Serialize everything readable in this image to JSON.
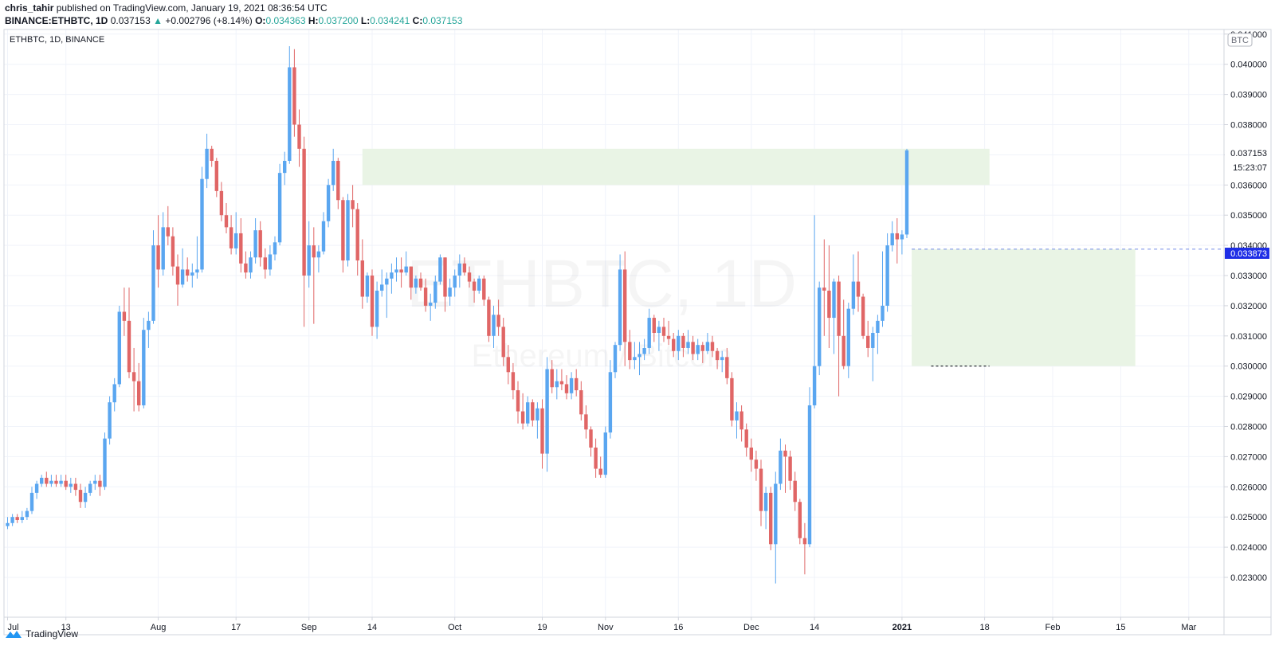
{
  "header": {
    "publisher_user": "chris_tahir",
    "publisher_text": "published on TradingView.com, January 19, 2021 08:36:54 UTC",
    "symbol_full": "BINANCE:ETHBTC, 1D",
    "last": "0.037153",
    "change": "+0.002796 (+8.14%)",
    "o_label": "O:",
    "o_val": "0.034363",
    "h_label": "H:",
    "h_val": "0.037200",
    "l_label": "L:",
    "l_val": "0.034241",
    "c_label": "C:",
    "c_val": "0.037153"
  },
  "legend": {
    "symbol": "ETHBTC, 1D, BINANCE"
  },
  "watermark": {
    "main": "ETHBTC, 1D",
    "sub": "Ethereum / Bitcoin"
  },
  "currency_badge": "BTC",
  "price_labels": {
    "last": "0.037153",
    "countdown": "15:23:07",
    "line": "0.033873"
  },
  "footer": {
    "brand": "TradingView"
  },
  "colors": {
    "up": "#5aa6f0",
    "down": "#e06666",
    "zone": "#e8f3e4",
    "line": "#3b5bdb"
  },
  "chart_data": {
    "type": "candlestick",
    "title": "ETHBTC, 1D, BINANCE",
    "ylim": [
      0.0226,
      0.0414
    ],
    "y_ticks": [
      "0.023000",
      "0.024000",
      "0.025000",
      "0.026000",
      "0.027000",
      "0.028000",
      "0.029000",
      "0.030000",
      "0.031000",
      "0.032000",
      "0.033000",
      "0.034000",
      "0.035000",
      "0.036000",
      "0.037000",
      "0.038000",
      "0.039000",
      "0.040000",
      "0.041000"
    ],
    "x_ticks": [
      {
        "day": 0,
        "label": "Jul"
      },
      {
        "day": 12,
        "label": "13"
      },
      {
        "day": 31,
        "label": "Aug"
      },
      {
        "day": 47,
        "label": "17"
      },
      {
        "day": 62,
        "label": "Sep"
      },
      {
        "day": 75,
        "label": "14"
      },
      {
        "day": 92,
        "label": "Oct"
      },
      {
        "day": 110,
        "label": "19"
      },
      {
        "day": 123,
        "label": "Nov"
      },
      {
        "day": 138,
        "label": "16"
      },
      {
        "day": 153,
        "label": "Dec"
      },
      {
        "day": 166,
        "label": "14"
      },
      {
        "day": 184,
        "label": "2021",
        "bold": true
      },
      {
        "day": 201,
        "label": "18"
      },
      {
        "day": 215,
        "label": "Feb"
      },
      {
        "day": 229,
        "label": "15"
      },
      {
        "day": 243,
        "label": "Mar"
      }
    ],
    "zones": [
      {
        "d0": 73,
        "d1": 202,
        "low": 0.036,
        "high": 0.0372
      },
      {
        "d0": 186,
        "d1": 232,
        "low": 0.03,
        "high": 0.03387
      }
    ],
    "hline": {
      "value": 0.033873,
      "from_day": 186
    },
    "black_dash": {
      "value": 0.03,
      "d0": 190,
      "d1": 202
    },
    "candles": [
      [
        0.0247,
        0.025,
        0.0246,
        0.0248
      ],
      [
        0.0248,
        0.0251,
        0.0247,
        0.025
      ],
      [
        0.025,
        0.0251,
        0.0248,
        0.0249
      ],
      [
        0.0249,
        0.0252,
        0.0248,
        0.025
      ],
      [
        0.025,
        0.0253,
        0.0249,
        0.0252
      ],
      [
        0.0252,
        0.026,
        0.0251,
        0.0258
      ],
      [
        0.0258,
        0.0262,
        0.0256,
        0.0261
      ],
      [
        0.0261,
        0.0264,
        0.026,
        0.0263
      ],
      [
        0.0263,
        0.0265,
        0.026,
        0.0261
      ],
      [
        0.0261,
        0.0264,
        0.026,
        0.0262
      ],
      [
        0.0262,
        0.0264,
        0.026,
        0.0261
      ],
      [
        0.0261,
        0.0264,
        0.026,
        0.0262
      ],
      [
        0.0262,
        0.0264,
        0.0259,
        0.026
      ],
      [
        0.026,
        0.0263,
        0.0258,
        0.0261
      ],
      [
        0.0261,
        0.0263,
        0.0257,
        0.0259
      ],
      [
        0.0259,
        0.0261,
        0.0253,
        0.0255
      ],
      [
        0.0255,
        0.026,
        0.0253,
        0.0258
      ],
      [
        0.0258,
        0.0262,
        0.0257,
        0.0261
      ],
      [
        0.0261,
        0.0264,
        0.0259,
        0.0262
      ],
      [
        0.0262,
        0.0264,
        0.0257,
        0.026
      ],
      [
        0.026,
        0.0278,
        0.0259,
        0.0276
      ],
      [
        0.0276,
        0.029,
        0.0274,
        0.0288
      ],
      [
        0.0288,
        0.0296,
        0.0285,
        0.0294
      ],
      [
        0.0294,
        0.032,
        0.0293,
        0.0318
      ],
      [
        0.0318,
        0.0326,
        0.031,
        0.0315
      ],
      [
        0.0315,
        0.0326,
        0.0296,
        0.0298
      ],
      [
        0.0298,
        0.0306,
        0.0285,
        0.0295
      ],
      [
        0.0295,
        0.0301,
        0.0285,
        0.0287
      ],
      [
        0.0287,
        0.0316,
        0.0286,
        0.0312
      ],
      [
        0.0312,
        0.0318,
        0.0306,
        0.0315
      ],
      [
        0.0315,
        0.0345,
        0.0314,
        0.034
      ],
      [
        0.034,
        0.035,
        0.0326,
        0.0332
      ],
      [
        0.0332,
        0.0351,
        0.033,
        0.0346
      ],
      [
        0.0346,
        0.0353,
        0.034,
        0.0343
      ],
      [
        0.0343,
        0.0346,
        0.033,
        0.0333
      ],
      [
        0.0333,
        0.0337,
        0.032,
        0.0327
      ],
      [
        0.0327,
        0.0339,
        0.0326,
        0.0332
      ],
      [
        0.0332,
        0.0336,
        0.0328,
        0.033
      ],
      [
        0.033,
        0.0334,
        0.0326,
        0.0331
      ],
      [
        0.0331,
        0.0343,
        0.0329,
        0.0332
      ],
      [
        0.0332,
        0.0366,
        0.0331,
        0.0362
      ],
      [
        0.0362,
        0.0377,
        0.0359,
        0.0372
      ],
      [
        0.0372,
        0.0373,
        0.0366,
        0.0368
      ],
      [
        0.0368,
        0.0369,
        0.0356,
        0.0358
      ],
      [
        0.0358,
        0.0361,
        0.0348,
        0.035
      ],
      [
        0.035,
        0.0354,
        0.0344,
        0.0346
      ],
      [
        0.0346,
        0.035,
        0.0337,
        0.0339
      ],
      [
        0.0339,
        0.0351,
        0.0337,
        0.0344
      ],
      [
        0.0344,
        0.0349,
        0.0331,
        0.0334
      ],
      [
        0.0334,
        0.0338,
        0.0329,
        0.0331
      ],
      [
        0.0331,
        0.0338,
        0.0329,
        0.0336
      ],
      [
        0.0336,
        0.0349,
        0.0334,
        0.0345
      ],
      [
        0.0345,
        0.0348,
        0.0333,
        0.0336
      ],
      [
        0.0336,
        0.0339,
        0.0329,
        0.0332
      ],
      [
        0.0332,
        0.034,
        0.033,
        0.0337
      ],
      [
        0.0337,
        0.0343,
        0.0335,
        0.0341
      ],
      [
        0.0341,
        0.0367,
        0.034,
        0.0364
      ],
      [
        0.0364,
        0.0371,
        0.036,
        0.0368
      ],
      [
        0.0368,
        0.0406,
        0.0367,
        0.0399
      ],
      [
        0.0399,
        0.0405,
        0.0376,
        0.038
      ],
      [
        0.038,
        0.0385,
        0.0366,
        0.0372
      ],
      [
        0.0372,
        0.0376,
        0.0313,
        0.033
      ],
      [
        0.033,
        0.0348,
        0.0326,
        0.034
      ],
      [
        0.034,
        0.0346,
        0.0314,
        0.0336
      ],
      [
        0.0336,
        0.034,
        0.0331,
        0.0338
      ],
      [
        0.0338,
        0.0351,
        0.0337,
        0.0348
      ],
      [
        0.0348,
        0.0362,
        0.0346,
        0.036
      ],
      [
        0.036,
        0.0372,
        0.0358,
        0.0368
      ],
      [
        0.0368,
        0.0369,
        0.0352,
        0.0355
      ],
      [
        0.0355,
        0.0356,
        0.0331,
        0.0335
      ],
      [
        0.0335,
        0.0357,
        0.0333,
        0.0355
      ],
      [
        0.0355,
        0.036,
        0.0346,
        0.0352
      ],
      [
        0.0352,
        0.0354,
        0.033,
        0.0335
      ],
      [
        0.0335,
        0.0342,
        0.0319,
        0.0323
      ],
      [
        0.0323,
        0.0331,
        0.0321,
        0.033
      ],
      [
        0.033,
        0.0332,
        0.031,
        0.0313
      ],
      [
        0.0313,
        0.0328,
        0.0309,
        0.0325
      ],
      [
        0.0325,
        0.0332,
        0.0323,
        0.0327
      ],
      [
        0.0327,
        0.0331,
        0.0316,
        0.0329
      ],
      [
        0.0329,
        0.0334,
        0.0324,
        0.0331
      ],
      [
        0.0331,
        0.0336,
        0.0328,
        0.0332
      ],
      [
        0.0332,
        0.0336,
        0.0326,
        0.0331
      ],
      [
        0.0331,
        0.0338,
        0.033,
        0.0333
      ],
      [
        0.0333,
        0.0333,
        0.0322,
        0.0326
      ],
      [
        0.0326,
        0.033,
        0.0324,
        0.0329
      ],
      [
        0.0329,
        0.0331,
        0.0325,
        0.0326
      ],
      [
        0.0326,
        0.0329,
        0.0318,
        0.032
      ],
      [
        0.032,
        0.0324,
        0.0315,
        0.0321
      ],
      [
        0.0321,
        0.033,
        0.0319,
        0.0328
      ],
      [
        0.0328,
        0.0337,
        0.0327,
        0.0336
      ],
      [
        0.0336,
        0.0336,
        0.0318,
        0.0323
      ],
      [
        0.0323,
        0.0329,
        0.032,
        0.0326
      ],
      [
        0.0326,
        0.0332,
        0.0323,
        0.033
      ],
      [
        0.033,
        0.0337,
        0.0326,
        0.0334
      ],
      [
        0.0334,
        0.0336,
        0.033,
        0.0331
      ],
      [
        0.0331,
        0.0333,
        0.0326,
        0.0328
      ],
      [
        0.0328,
        0.0329,
        0.0321,
        0.0325
      ],
      [
        0.0325,
        0.033,
        0.0324,
        0.0329
      ],
      [
        0.0329,
        0.033,
        0.032,
        0.0322
      ],
      [
        0.0322,
        0.0323,
        0.0308,
        0.031
      ],
      [
        0.031,
        0.032,
        0.0306,
        0.0317
      ],
      [
        0.0317,
        0.0322,
        0.031,
        0.0313
      ],
      [
        0.0313,
        0.0316,
        0.03,
        0.0303
      ],
      [
        0.0303,
        0.0307,
        0.0294,
        0.0298
      ],
      [
        0.0298,
        0.0301,
        0.0289,
        0.0292
      ],
      [
        0.0292,
        0.0295,
        0.0281,
        0.0285
      ],
      [
        0.0285,
        0.0291,
        0.0279,
        0.0281
      ],
      [
        0.0281,
        0.029,
        0.028,
        0.0288
      ],
      [
        0.0288,
        0.0289,
        0.028,
        0.0282
      ],
      [
        0.0282,
        0.0288,
        0.0276,
        0.0286
      ],
      [
        0.0286,
        0.0289,
        0.0266,
        0.0271
      ],
      [
        0.0271,
        0.0303,
        0.0265,
        0.0299
      ],
      [
        0.0299,
        0.0302,
        0.0291,
        0.0293
      ],
      [
        0.0293,
        0.0299,
        0.0289,
        0.0295
      ],
      [
        0.0295,
        0.0299,
        0.0292,
        0.0294
      ],
      [
        0.0294,
        0.0297,
        0.0289,
        0.0291
      ],
      [
        0.0291,
        0.0298,
        0.0289,
        0.0296
      ],
      [
        0.0296,
        0.0299,
        0.029,
        0.0292
      ],
      [
        0.0292,
        0.0295,
        0.0282,
        0.0284
      ],
      [
        0.0284,
        0.0287,
        0.0276,
        0.0279
      ],
      [
        0.0279,
        0.028,
        0.027,
        0.0273
      ],
      [
        0.0273,
        0.0276,
        0.0263,
        0.0266
      ],
      [
        0.0266,
        0.027,
        0.0263,
        0.0264
      ],
      [
        0.0264,
        0.028,
        0.0263,
        0.0278
      ],
      [
        0.0278,
        0.0302,
        0.0276,
        0.0298
      ],
      [
        0.0298,
        0.0308,
        0.0296,
        0.0307
      ],
      [
        0.0307,
        0.0337,
        0.0305,
        0.0332
      ],
      [
        0.0332,
        0.0338,
        0.03,
        0.0308
      ],
      [
        0.0308,
        0.0312,
        0.0299,
        0.0302
      ],
      [
        0.0302,
        0.0308,
        0.0299,
        0.0303
      ],
      [
        0.0303,
        0.0308,
        0.0297,
        0.0304
      ],
      [
        0.0304,
        0.0309,
        0.0302,
        0.0306
      ],
      [
        0.0306,
        0.0319,
        0.0304,
        0.0316
      ],
      [
        0.0316,
        0.0317,
        0.0308,
        0.0311
      ],
      [
        0.0311,
        0.0315,
        0.0305,
        0.0313
      ],
      [
        0.0313,
        0.0316,
        0.0308,
        0.031
      ],
      [
        0.031,
        0.0315,
        0.0307,
        0.0309
      ],
      [
        0.0309,
        0.0311,
        0.0303,
        0.0305
      ],
      [
        0.0305,
        0.0312,
        0.0302,
        0.031
      ],
      [
        0.031,
        0.0311,
        0.0303,
        0.0306
      ],
      [
        0.0306,
        0.0312,
        0.0304,
        0.0308
      ],
      [
        0.0308,
        0.031,
        0.0302,
        0.0304
      ],
      [
        0.0304,
        0.0309,
        0.0302,
        0.0307
      ],
      [
        0.0307,
        0.0308,
        0.0301,
        0.0305
      ],
      [
        0.0305,
        0.0311,
        0.0304,
        0.0308
      ],
      [
        0.0308,
        0.031,
        0.0303,
        0.0305
      ],
      [
        0.0305,
        0.0306,
        0.0299,
        0.0302
      ],
      [
        0.0302,
        0.0305,
        0.0298,
        0.0303
      ],
      [
        0.0303,
        0.0306,
        0.0294,
        0.0296
      ],
      [
        0.0296,
        0.0298,
        0.028,
        0.0282
      ],
      [
        0.0282,
        0.0288,
        0.0276,
        0.0285
      ],
      [
        0.0285,
        0.0287,
        0.0275,
        0.0279
      ],
      [
        0.0279,
        0.0281,
        0.027,
        0.0273
      ],
      [
        0.0273,
        0.0276,
        0.0265,
        0.0269
      ],
      [
        0.0269,
        0.0272,
        0.0262,
        0.0266
      ],
      [
        0.0266,
        0.0269,
        0.0247,
        0.0252
      ],
      [
        0.0252,
        0.026,
        0.0246,
        0.0258
      ],
      [
        0.0258,
        0.026,
        0.0239,
        0.0241
      ],
      [
        0.0241,
        0.0265,
        0.0228,
        0.0261
      ],
      [
        0.0261,
        0.0276,
        0.0259,
        0.0272
      ],
      [
        0.0272,
        0.0274,
        0.0258,
        0.027
      ],
      [
        0.027,
        0.0272,
        0.0259,
        0.0262
      ],
      [
        0.0262,
        0.0265,
        0.0252,
        0.0255
      ],
      [
        0.0255,
        0.0256,
        0.0241,
        0.0243
      ],
      [
        0.0243,
        0.0248,
        0.0231,
        0.0241
      ],
      [
        0.0241,
        0.0293,
        0.024,
        0.0287
      ],
      [
        0.0287,
        0.035,
        0.0286,
        0.03
      ],
      [
        0.03,
        0.0328,
        0.0297,
        0.0326
      ],
      [
        0.0326,
        0.0342,
        0.031,
        0.0325
      ],
      [
        0.0325,
        0.034,
        0.0306,
        0.0316
      ],
      [
        0.0316,
        0.0329,
        0.0304,
        0.0328
      ],
      [
        0.0328,
        0.033,
        0.029,
        0.031
      ],
      [
        0.031,
        0.0322,
        0.0299,
        0.03
      ],
      [
        0.03,
        0.0321,
        0.0296,
        0.0319
      ],
      [
        0.0319,
        0.0337,
        0.0317,
        0.0328
      ],
      [
        0.0328,
        0.0338,
        0.0318,
        0.0323
      ],
      [
        0.0323,
        0.0324,
        0.0309,
        0.031
      ],
      [
        0.031,
        0.0315,
        0.0303,
        0.0306
      ],
      [
        0.0306,
        0.0313,
        0.0295,
        0.0311
      ],
      [
        0.0311,
        0.0317,
        0.0304,
        0.0315
      ],
      [
        0.0315,
        0.0338,
        0.0313,
        0.032
      ],
      [
        0.032,
        0.0344,
        0.0318,
        0.034
      ],
      [
        0.034,
        0.0348,
        0.0338,
        0.0344
      ],
      [
        0.0344,
        0.0349,
        0.0334,
        0.0342
      ],
      [
        0.0342,
        0.0345,
        0.0337,
        0.03436
      ],
      [
        0.03436,
        0.0372,
        0.03424,
        0.03715
      ]
    ]
  }
}
